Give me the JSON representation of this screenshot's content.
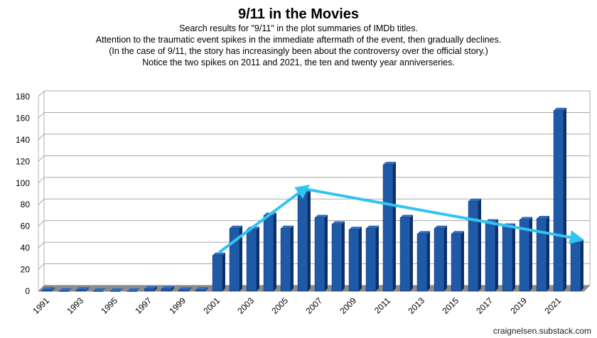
{
  "chart_data": {
    "type": "bar",
    "title": "9/11 in the Movies",
    "subtitle_lines": [
      "Search results for \"9/11\" in the plot summaries of IMDb titles.",
      "Attention to the traumatic event spikes in the immediate aftermath of the event, then gradually declines.",
      "(In the case of 9/11, the story has increasingly been about the controversy over the official story.)",
      "Notice the two spikes on 2011 and 2021, the ten and twenty year anniverseries."
    ],
    "categories": [
      "1991",
      "1992",
      "1993",
      "1994",
      "1995",
      "1996",
      "1997",
      "1998",
      "1999",
      "2000",
      "2001",
      "2002",
      "2003",
      "2004",
      "2005",
      "2006",
      "2007",
      "2008",
      "2009",
      "2010",
      "2011",
      "2012",
      "2013",
      "2014",
      "2015",
      "2016",
      "2017",
      "2018",
      "2019",
      "2020",
      "2021",
      "2022"
    ],
    "x_tick_labels": [
      "1991",
      "1993",
      "1995",
      "1997",
      "1999",
      "2001",
      "2003",
      "2005",
      "2007",
      "2009",
      "2011",
      "2013",
      "2015",
      "2017",
      "2019",
      "2021"
    ],
    "values": [
      1,
      0,
      1,
      0,
      0,
      0,
      2,
      2,
      1,
      1,
      33,
      58,
      57,
      70,
      58,
      91,
      68,
      62,
      57,
      58,
      117,
      68,
      53,
      58,
      53,
      83,
      64,
      60,
      66,
      67,
      167,
      45
    ],
    "ylim": [
      0,
      180
    ],
    "yticks": [
      0,
      20,
      40,
      60,
      80,
      100,
      120,
      140,
      160,
      180
    ],
    "grid": true,
    "annotations": [
      {
        "type": "arrow",
        "from_year": "2001",
        "from_value": 33,
        "to_year": "2006",
        "to_value": 92
      },
      {
        "type": "arrow",
        "from_year": "2006",
        "from_value": 92,
        "to_year": "2022",
        "to_value": 46
      }
    ],
    "colors": {
      "bar": "#1f5aa8",
      "bar_side": "#0b2f66",
      "bar_top": "#2f6cc0",
      "arrow": "#33c3f0",
      "grid": "#a8a8a8"
    }
  },
  "credit": "craignelsen.substack.com"
}
